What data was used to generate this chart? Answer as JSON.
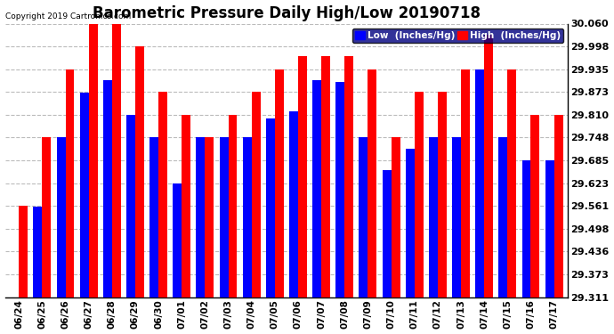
{
  "title": "Barometric Pressure Daily High/Low 20190718",
  "copyright": "Copyright 2019 Cartronics.com",
  "legend_low": "Low  (Inches/Hg)",
  "legend_high": "High  (Inches/Hg)",
  "dates": [
    "06/24",
    "06/25",
    "06/26",
    "06/27",
    "06/28",
    "06/29",
    "06/30",
    "07/01",
    "07/02",
    "07/03",
    "07/04",
    "07/05",
    "07/06",
    "07/07",
    "07/08",
    "07/09",
    "07/10",
    "07/11",
    "07/12",
    "07/13",
    "07/14",
    "07/15",
    "07/16",
    "07/17"
  ],
  "low": [
    29.311,
    29.56,
    29.748,
    29.872,
    29.905,
    29.81,
    29.748,
    29.623,
    29.748,
    29.748,
    29.748,
    29.8,
    29.82,
    29.905,
    29.9,
    29.748,
    29.66,
    29.718,
    29.748,
    29.748,
    29.935,
    29.748,
    29.685,
    29.685
  ],
  "high": [
    29.561,
    29.748,
    29.935,
    30.06,
    30.06,
    29.998,
    29.873,
    29.81,
    29.748,
    29.81,
    29.873,
    29.935,
    29.97,
    29.97,
    29.97,
    29.935,
    29.748,
    29.873,
    29.873,
    29.935,
    30.03,
    29.935,
    29.81,
    29.81
  ],
  "low_color": "#0000FF",
  "high_color": "#FF0000",
  "ylim_min": 29.311,
  "ylim_max": 30.06,
  "yticks": [
    29.311,
    29.373,
    29.436,
    29.498,
    29.561,
    29.623,
    29.685,
    29.748,
    29.81,
    29.873,
    29.935,
    29.998,
    30.06
  ],
  "background_color": "#FFFFFF",
  "grid_color": "#AAAAAA",
  "title_fontsize": 12,
  "bar_width": 0.38,
  "legend_bg": "#000080"
}
